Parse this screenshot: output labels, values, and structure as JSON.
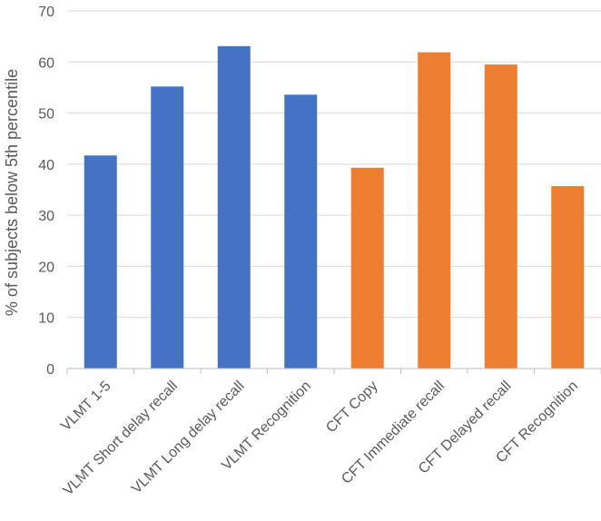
{
  "chart_data": {
    "type": "bar",
    "title": "",
    "xlabel": "",
    "ylabel": "% of subjects below 5th percentile",
    "ylim": [
      0,
      70
    ],
    "yticks": [
      0,
      10,
      20,
      30,
      40,
      50,
      60,
      70
    ],
    "grid": true,
    "legend": "none",
    "categories": [
      "VLMT 1-5",
      "VLMT Short delay recall",
      "VLMT Long delay recall",
      "VLMT Recognition",
      "CFT Copy",
      "CFT Immediate recall",
      "CFT Delayed recall",
      "CFT Recognition"
    ],
    "values": [
      41.7,
      55.2,
      63.1,
      53.6,
      39.3,
      61.9,
      59.5,
      35.7
    ],
    "bar_colors": [
      "#4472C4",
      "#4472C4",
      "#4472C4",
      "#4472C4",
      "#ED7D31",
      "#ED7D31",
      "#ED7D31",
      "#ED7D31"
    ]
  }
}
